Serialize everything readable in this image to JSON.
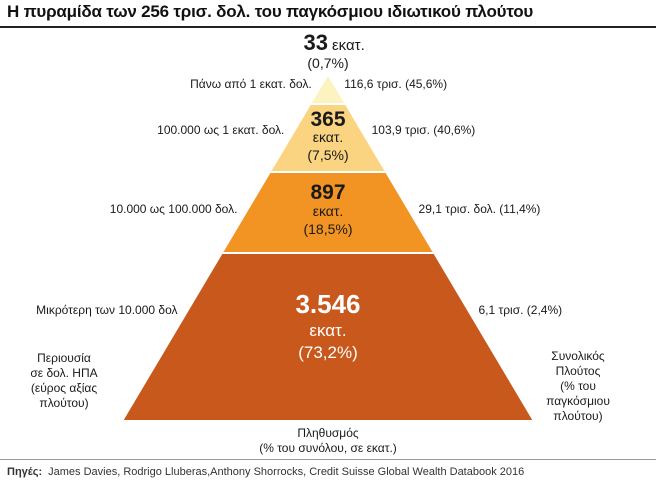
{
  "title": "Η πυραμίδα των 256 τρισ. δολ. του παγκόσμιου ιδιωτικού πλούτου",
  "source": {
    "label": "Πηγές:",
    "text": "James Davies, Rodrigo Lluberas,Anthony Shorrocks, Credit Suisse Global Wealth Databook 2016"
  },
  "chart_data": {
    "type": "pyramid",
    "left_axis_label": [
      "Περιουσία",
      "σε δολ. ΗΠΑ",
      "(εύρος αξίας",
      "πλούτου)"
    ],
    "right_axis_label": [
      "Συνολικός",
      "Πλούτος",
      "(% του",
      "παγκόσμιου",
      "πλούτου)"
    ],
    "bottom_axis_label": [
      "Πληθυσμός",
      "(% του συνόλου, σε εκατ.)"
    ],
    "tiers": [
      {
        "range": "Πάνω από 1 εκατ. δολ.",
        "population_value": "33",
        "population_unit": "εκατ.",
        "population_pct": "(0,7%)",
        "wealth": "116,6 τρισ. (45,6%)",
        "population_millions": 33,
        "population_share": 0.7,
        "wealth_trillions": 116.6,
        "wealth_share": 45.6,
        "color": "#fdf3c0"
      },
      {
        "range": "100.000 ως 1 εκατ. δολ.",
        "population_value": "365",
        "population_unit": "εκατ.",
        "population_pct": "(7,5%)",
        "wealth": "103,9 τρισ. (40,6%)",
        "population_millions": 365,
        "population_share": 7.5,
        "wealth_trillions": 103.9,
        "wealth_share": 40.6,
        "color": "#fad480"
      },
      {
        "range": "10.000 ως 100.000 δολ.",
        "population_value": "897",
        "population_unit": "εκατ.",
        "population_pct": "(18,5%)",
        "wealth": "29,1 τρισ. δολ. (11,4%)",
        "population_millions": 897,
        "population_share": 18.5,
        "wealth_trillions": 29.1,
        "wealth_share": 11.4,
        "color": "#f29424"
      },
      {
        "range": "Μικρότερη των 10.000 δολ",
        "population_value": "3.546",
        "population_unit": "εκατ.",
        "population_pct": "(73,2%)",
        "wealth": "6,1 τρισ. (2,4%)",
        "population_millions": 3546,
        "population_share": 73.2,
        "wealth_trillions": 6.1,
        "wealth_share": 2.4,
        "color": "#c8581c"
      }
    ]
  }
}
